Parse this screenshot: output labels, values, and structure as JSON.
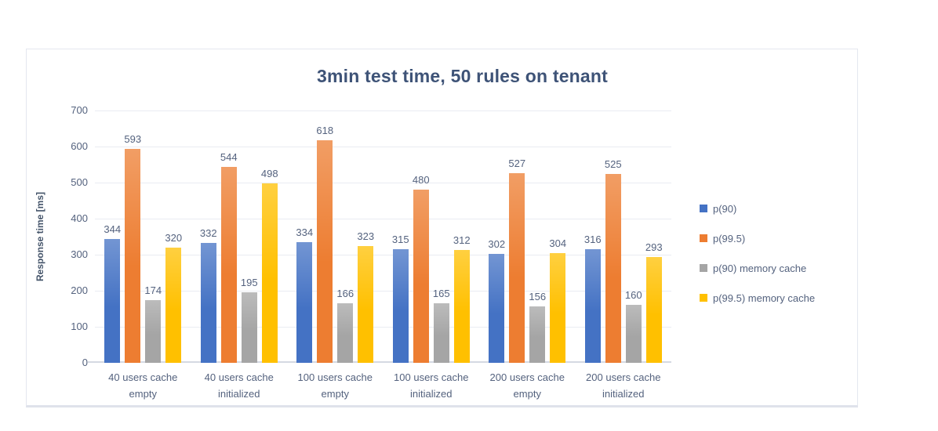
{
  "chart_data": {
    "type": "bar",
    "title": "3min test time, 50 rules on tenant",
    "xlabel": "",
    "ylabel": "Response time [ms]",
    "ylim": [
      0,
      700
    ],
    "ytick_step": 100,
    "grid": true,
    "legend_position": "right",
    "categories": [
      "40 users cache empty",
      "40 users cache initialized",
      "100 users cache empty",
      "100 users cache initialized",
      "200 users cache empty",
      "200 users cache initialized"
    ],
    "series": [
      {
        "name": "p(90)",
        "color": "#4472C4",
        "values": [
          344,
          332,
          334,
          315,
          302,
          316
        ]
      },
      {
        "name": "p(99.5)",
        "color": "#ED7D31",
        "values": [
          593,
          544,
          618,
          480,
          527,
          525
        ]
      },
      {
        "name": "p(90) memory cache",
        "color": "#A5A5A5",
        "values": [
          174,
          195,
          166,
          165,
          156,
          160
        ]
      },
      {
        "name": "p(99.5) memory cache",
        "color": "#FFC000",
        "values": [
          320,
          498,
          323,
          312,
          304,
          293
        ]
      }
    ],
    "text_color": "#54627E",
    "title_color": "#3E5377",
    "gridline_color": "#EAECF2",
    "axis_line_color": "#D5D9E2"
  }
}
